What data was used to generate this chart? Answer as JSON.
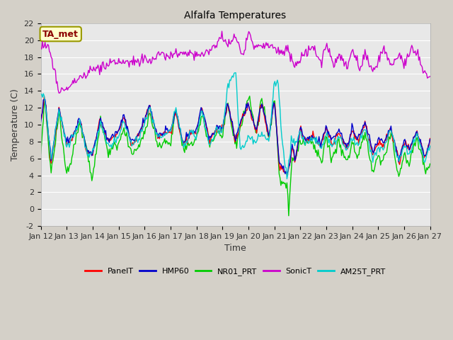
{
  "title": "Alfalfa Temperatures",
  "xlabel": "Time",
  "ylabel": "Temperature (C)",
  "ylim": [
    -2,
    22
  ],
  "yticks": [
    -2,
    0,
    2,
    4,
    6,
    8,
    10,
    12,
    14,
    16,
    18,
    20,
    22
  ],
  "annotation_text": "TA_met",
  "annotation_color": "#8B0000",
  "annotation_bg": "#FFFFCC",
  "annotation_edge": "#999900",
  "x_tick_labels": [
    "Jan 12",
    "Jan 13",
    "Jan 14",
    "Jan 15",
    "Jan 16",
    "Jan 17",
    "Jan 18",
    "Jan 19",
    "Jan 20",
    "Jan 21",
    "Jan 22",
    "Jan 23",
    "Jan 24",
    "Jan 25",
    "Jan 26",
    "Jan 27"
  ],
  "colors": {
    "PanelT": "#FF0000",
    "HMP60": "#0000CC",
    "NR01_PRT": "#00CC00",
    "SonicT": "#CC00CC",
    "AM25T_PRT": "#00CCCC"
  },
  "linewidth": 1.0,
  "fig_bg": "#D4D0C8",
  "plot_bg": "#E8E8E8",
  "grid_color": "#FFFFFF",
  "tick_color": "#333333",
  "title_fontsize": 10,
  "label_fontsize": 9,
  "tick_fontsize": 8,
  "legend_fontsize": 8
}
